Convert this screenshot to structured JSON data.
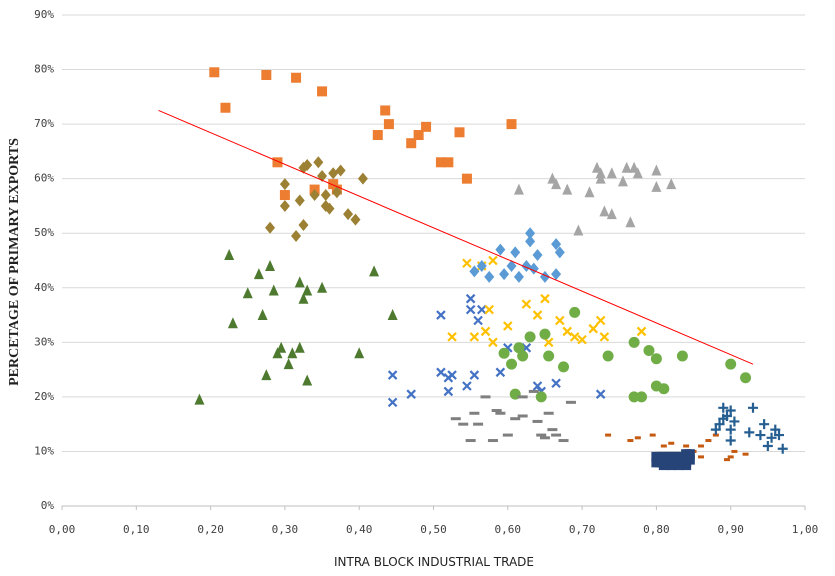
{
  "chart_data": {
    "type": "scatter",
    "y_label": "PERCETAGE OF PRIMARY EXPORTS",
    "x_label": "INTRA BLOCK INDUSTRIAL TRADE",
    "xlim": [
      0,
      1
    ],
    "ylim": [
      0,
      90
    ],
    "grid": true,
    "xticks": [
      {
        "value": 0,
        "label": "0,00"
      },
      {
        "value": 0.1,
        "label": "0,10"
      },
      {
        "value": 0.2,
        "label": "0,20"
      },
      {
        "value": 0.3,
        "label": "0,30"
      },
      {
        "value": 0.4,
        "label": "0,40"
      },
      {
        "value": 0.5,
        "label": "0,50"
      },
      {
        "value": 0.6,
        "label": "0,60"
      },
      {
        "value": 0.7,
        "label": "0,70"
      },
      {
        "value": 0.8,
        "label": "0,80"
      },
      {
        "value": 0.9,
        "label": "0,90"
      },
      {
        "value": 1,
        "label": "1,00"
      }
    ],
    "yticks": [
      {
        "value": 0,
        "label": "0%"
      },
      {
        "value": 10,
        "label": "10%"
      },
      {
        "value": 20,
        "label": "20%"
      },
      {
        "value": 30,
        "label": "30%"
      },
      {
        "value": 40,
        "label": "40%"
      },
      {
        "value": 50,
        "label": "50%"
      },
      {
        "value": 60,
        "label": "60%"
      },
      {
        "value": 70,
        "label": "70%"
      },
      {
        "value": 80,
        "label": "80%"
      },
      {
        "value": 90,
        "label": "90%"
      }
    ],
    "trend": {
      "color": "#ff0000",
      "x": [
        0.13,
        0.93
      ],
      "values": [
        72.5,
        26
      ]
    },
    "series": [
      {
        "color": "#ED7D31",
        "marker": "square",
        "x": [
          0.205,
          0.22,
          0.275,
          0.315,
          0.35,
          0.29,
          0.3,
          0.34,
          0.365,
          0.37,
          0.425,
          0.435,
          0.44,
          0.47,
          0.48,
          0.49,
          0.51,
          0.52,
          0.535,
          0.545,
          0.605
        ],
        "values": [
          79.5,
          73,
          79,
          78.5,
          76,
          63,
          57,
          58,
          59,
          58,
          68,
          72.5,
          70,
          66.5,
          68,
          69.5,
          63,
          63,
          68.5,
          60,
          70
        ]
      },
      {
        "color": "#9C8134",
        "marker": "diamond",
        "x": [
          0.28,
          0.3,
          0.3,
          0.315,
          0.32,
          0.325,
          0.33,
          0.34,
          0.345,
          0.35,
          0.355,
          0.36,
          0.365,
          0.37,
          0.375,
          0.385,
          0.395,
          0.405,
          0.325,
          0.355
        ],
        "values": [
          51,
          59,
          55,
          49.5,
          56,
          51.5,
          62.5,
          57,
          63,
          60.5,
          57,
          54.5,
          61,
          57.5,
          61.5,
          53.5,
          52.5,
          60,
          62,
          55
        ]
      },
      {
        "color": "#4E7A30",
        "marker": "triangle",
        "x": [
          0.185,
          0.225,
          0.23,
          0.25,
          0.265,
          0.27,
          0.275,
          0.28,
          0.285,
          0.29,
          0.295,
          0.305,
          0.31,
          0.32,
          0.32,
          0.325,
          0.33,
          0.33,
          0.35,
          0.4,
          0.42,
          0.445
        ],
        "values": [
          19.5,
          46,
          33.5,
          39,
          42.5,
          35,
          24,
          44,
          39.5,
          28,
          29,
          26,
          28,
          29,
          41,
          38,
          39.5,
          23,
          40,
          28,
          43,
          35
        ]
      },
      {
        "color": "#4472C4",
        "marker": "x",
        "x": [
          0.445,
          0.445,
          0.47,
          0.51,
          0.51,
          0.52,
          0.52,
          0.525,
          0.545,
          0.55,
          0.55,
          0.56,
          0.565,
          0.555,
          0.59,
          0.6,
          0.625,
          0.64,
          0.645,
          0.665,
          0.725
        ],
        "values": [
          24,
          19,
          20.5,
          35,
          24.5,
          23.5,
          21,
          24,
          22,
          38,
          36,
          34,
          36,
          24,
          24.5,
          29,
          29,
          22,
          21,
          22.5,
          20.5
        ]
      },
      {
        "color": "#FFC000",
        "marker": "x",
        "x": [
          0.525,
          0.545,
          0.555,
          0.565,
          0.57,
          0.575,
          0.58,
          0.58,
          0.6,
          0.625,
          0.64,
          0.65,
          0.655,
          0.67,
          0.68,
          0.69,
          0.7,
          0.715,
          0.725,
          0.73,
          0.78
        ],
        "values": [
          31,
          44.5,
          31,
          44,
          32,
          36,
          45,
          30,
          33,
          37,
          35,
          38,
          30,
          34,
          32,
          31,
          30.5,
          32.5,
          34,
          31,
          32
        ]
      },
      {
        "color": "#5B9BD5",
        "marker": "diamond",
        "x": [
          0.555,
          0.565,
          0.575,
          0.59,
          0.595,
          0.605,
          0.61,
          0.615,
          0.625,
          0.63,
          0.635,
          0.64,
          0.65,
          0.665,
          0.67,
          0.665,
          0.63
        ],
        "values": [
          43,
          44,
          42,
          47,
          42.5,
          44,
          46.5,
          42,
          44,
          50,
          43.5,
          46,
          42,
          48,
          46.5,
          42.5,
          48.5
        ]
      },
      {
        "color": "#A5A5A5",
        "marker": "triangle",
        "x": [
          0.615,
          0.66,
          0.665,
          0.68,
          0.695,
          0.71,
          0.72,
          0.725,
          0.73,
          0.74,
          0.74,
          0.755,
          0.76,
          0.765,
          0.77,
          0.775,
          0.8,
          0.8,
          0.82,
          0.725
        ],
        "values": [
          58,
          60,
          59,
          58,
          50.5,
          57.5,
          62,
          60,
          54,
          61,
          53.5,
          59.5,
          62,
          52,
          62,
          61,
          61.5,
          58.5,
          59,
          61
        ]
      },
      {
        "color": "#70AD47",
        "marker": "circle",
        "x": [
          0.595,
          0.605,
          0.61,
          0.615,
          0.62,
          0.63,
          0.645,
          0.65,
          0.655,
          0.675,
          0.69,
          0.735,
          0.77,
          0.77,
          0.78,
          0.79,
          0.8,
          0.8,
          0.81,
          0.835,
          0.9,
          0.92
        ],
        "values": [
          28,
          26,
          20.5,
          29,
          27.5,
          31,
          20,
          31.5,
          27.5,
          25.5,
          35.5,
          27.5,
          30,
          20,
          20,
          28.5,
          27,
          22,
          21.5,
          27.5,
          26,
          23.5
        ]
      },
      {
        "color": "#7F7F7F",
        "marker": "dash",
        "x": [
          0.53,
          0.54,
          0.55,
          0.56,
          0.57,
          0.58,
          0.585,
          0.59,
          0.6,
          0.61,
          0.62,
          0.635,
          0.64,
          0.645,
          0.65,
          0.655,
          0.66,
          0.665,
          0.675,
          0.685,
          0.62,
          0.555
        ],
        "values": [
          16,
          15,
          12,
          15,
          20,
          12,
          17.5,
          17,
          13,
          16,
          20,
          21,
          15.5,
          13,
          12.5,
          17,
          14,
          13,
          12,
          19,
          16.5,
          17
        ]
      },
      {
        "color": "#C55A11",
        "marker": "dash-small",
        "x": [
          0.735,
          0.765,
          0.795,
          0.81,
          0.82,
          0.85,
          0.86,
          0.87,
          0.88,
          0.895,
          0.9,
          0.905,
          0.92,
          0.83,
          0.84,
          0.775,
          0.86
        ],
        "values": [
          13,
          12,
          13,
          11,
          11.5,
          10,
          11,
          12,
          13,
          8.5,
          9,
          10,
          9.5,
          9,
          11,
          12.5,
          9
        ]
      },
      {
        "color": "#264478",
        "marker": "square",
        "x": [
          0.8,
          0.805,
          0.81,
          0.815,
          0.82,
          0.825,
          0.83,
          0.835,
          0.84,
          0.845,
          0.8,
          0.805,
          0.81,
          0.815,
          0.82,
          0.825,
          0.83,
          0.835,
          0.84,
          0.845,
          0.81,
          0.82,
          0.83,
          0.84
        ],
        "values": [
          8,
          8,
          8,
          8,
          8,
          8,
          8,
          8,
          8,
          8.5,
          9,
          9,
          9,
          9,
          9,
          9,
          9,
          9,
          9.5,
          9.5,
          7.5,
          7.5,
          7.5,
          7.5
        ]
      },
      {
        "color": "#255E91",
        "marker": "plus",
        "x": [
          0.88,
          0.885,
          0.89,
          0.89,
          0.895,
          0.9,
          0.9,
          0.905,
          0.9,
          0.93,
          0.94,
          0.945,
          0.95,
          0.955,
          0.96,
          0.965,
          0.97,
          0.925
        ],
        "values": [
          14,
          15,
          16,
          18,
          16.5,
          17.5,
          14,
          15.5,
          12,
          18,
          13,
          15,
          11,
          12.5,
          14,
          13,
          10.5,
          13.5
        ]
      }
    ]
  }
}
